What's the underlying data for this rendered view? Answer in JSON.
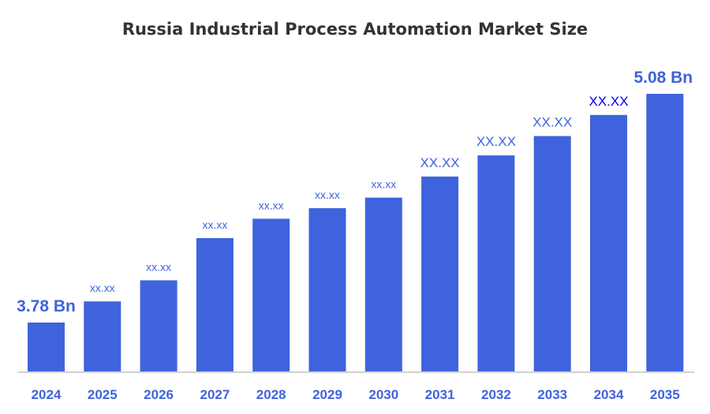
{
  "chart_data": {
    "type": "bar",
    "title": "Russia Industrial Process Automation Market Size",
    "xlabel": "",
    "ylabel": "",
    "categories": [
      "2024",
      "2025",
      "2026",
      "2027",
      "2028",
      "2029",
      "2030",
      "2031",
      "2032",
      "2033",
      "2034",
      "2035"
    ],
    "values": [
      3.78,
      3.9,
      4.02,
      4.26,
      4.37,
      4.43,
      4.49,
      4.61,
      4.73,
      4.84,
      4.96,
      5.08
    ],
    "data_labels": [
      "3.78 Bn",
      "xx.xx",
      "xx.xx",
      "xx.xx",
      "xx.xx",
      "xx.xx",
      "xx.xx",
      "XX.XX",
      "XX.XX",
      "XX.XX",
      "XX.XX",
      "5.08 Bn"
    ],
    "unit": "Bn",
    "grid": false,
    "legend": "none",
    "colors": {
      "bar": "#3f63dd",
      "label": "#3f63dd",
      "label_highlight": "#0000ee",
      "axis": "#d0d0d0"
    }
  }
}
